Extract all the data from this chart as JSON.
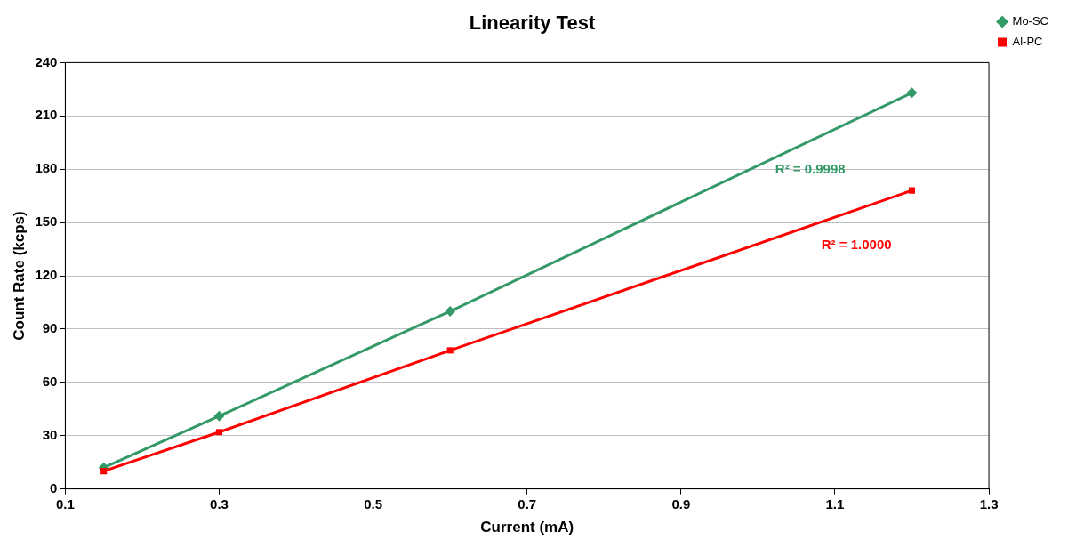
{
  "chart_data": {
    "type": "line",
    "title": "Linearity Test",
    "xlabel": "Current (mA)",
    "ylabel": "Count Rate (kcps)",
    "xlim": [
      0.1,
      1.3
    ],
    "xticks": [
      {
        "value": 0.1,
        "label": "0.1"
      },
      {
        "value": 0.3,
        "label": "0.3"
      },
      {
        "value": 0.5,
        "label": "0.5"
      },
      {
        "value": 0.7,
        "label": "0.7"
      },
      {
        "value": 0.9,
        "label": "0.9"
      },
      {
        "value": 1.1,
        "label": "1.1"
      },
      {
        "value": 1.3,
        "label": "1.3"
      }
    ],
    "ylim": [
      0,
      240
    ],
    "yticks": [
      0,
      30,
      60,
      90,
      120,
      150,
      180,
      210,
      240
    ],
    "grid": "y",
    "legend": "right",
    "series": [
      {
        "name": "Mo-SC",
        "color": "#339966",
        "marker": "diamond",
        "x": [
          0.15,
          0.3,
          0.6,
          1.2
        ],
        "values": [
          12,
          41,
          100,
          223
        ]
      },
      {
        "name": "Al-PC",
        "color": "#ff0000",
        "marker": "square",
        "x": [
          0.15,
          0.3,
          0.6,
          1.2
        ],
        "values": [
          10,
          32,
          78,
          168
        ]
      }
    ],
    "annotations": [
      "R² = 0.9998",
      "R² = 1.0000"
    ]
  }
}
